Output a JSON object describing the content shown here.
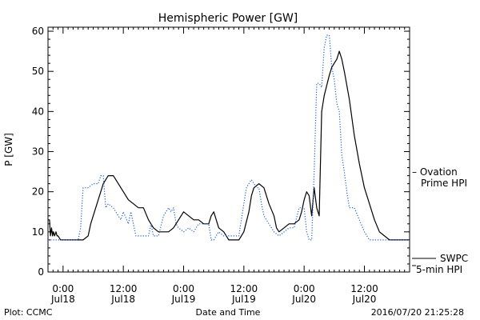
{
  "chart_data": {
    "type": "line",
    "title": "Hemispheric Power [GW]",
    "xlabel": "Date and Time",
    "ylabel": "P [GW]",
    "ylim": [
      0,
      61
    ],
    "yticks": [
      0,
      10,
      20,
      30,
      40,
      50,
      60
    ],
    "xlim_hours": [
      -3,
      69
    ],
    "xticks": [
      {
        "h": 0,
        "time": "0:00",
        "date": "Jul18"
      },
      {
        "h": 12,
        "time": "12:00",
        "date": "Jul18"
      },
      {
        "h": 24,
        "time": "0:00",
        "date": "Jul19"
      },
      {
        "h": 36,
        "time": "12:00",
        "date": "Jul19"
      },
      {
        "h": 48,
        "time": "0:00",
        "date": "Jul20"
      },
      {
        "h": 60,
        "time": "12:00",
        "date": "Jul20"
      }
    ],
    "x_minor_step_hours": 1,
    "grid": false,
    "series": [
      {
        "name": "SWPC 5-min HPI",
        "label_lines": [
          "SWPC",
          "5-min HPI"
        ],
        "color": "#000000",
        "style": "solid",
        "points": [
          [
            -3,
            13
          ],
          [
            -2.7,
            13
          ],
          [
            -2.5,
            9
          ],
          [
            -2.3,
            11
          ],
          [
            -2.1,
            9
          ],
          [
            -1.9,
            10
          ],
          [
            -1.7,
            9
          ],
          [
            -1.4,
            10
          ],
          [
            -1.2,
            9
          ],
          [
            -1,
            9
          ],
          [
            -0.5,
            8
          ],
          [
            0,
            8
          ],
          [
            4,
            8
          ],
          [
            5,
            9
          ],
          [
            5.5,
            12
          ],
          [
            6,
            14
          ],
          [
            7,
            18
          ],
          [
            8,
            22
          ],
          [
            8.5,
            23
          ],
          [
            9,
            24
          ],
          [
            10,
            24
          ],
          [
            11,
            22
          ],
          [
            12,
            20
          ],
          [
            13,
            18
          ],
          [
            14,
            17
          ],
          [
            15,
            16
          ],
          [
            16,
            16
          ],
          [
            17,
            13
          ],
          [
            18,
            11
          ],
          [
            19,
            10
          ],
          [
            20,
            10
          ],
          [
            21,
            10
          ],
          [
            22,
            11
          ],
          [
            23,
            13
          ],
          [
            24,
            15
          ],
          [
            25,
            14
          ],
          [
            26,
            13
          ],
          [
            27,
            13
          ],
          [
            28,
            12
          ],
          [
            29,
            12
          ],
          [
            29.5,
            14
          ],
          [
            30,
            15
          ],
          [
            30.5,
            13
          ],
          [
            31,
            11
          ],
          [
            32,
            10
          ],
          [
            32.5,
            9
          ],
          [
            33,
            8
          ],
          [
            34,
            8
          ],
          [
            35,
            8
          ],
          [
            36,
            10
          ],
          [
            37,
            15
          ],
          [
            37.5,
            19
          ],
          [
            38,
            21
          ],
          [
            39,
            22
          ],
          [
            40,
            21
          ],
          [
            41,
            17
          ],
          [
            42,
            14
          ],
          [
            42.5,
            11
          ],
          [
            43,
            10
          ],
          [
            44,
            11
          ],
          [
            45,
            12
          ],
          [
            46,
            12
          ],
          [
            47,
            13
          ],
          [
            47.5,
            15
          ],
          [
            48,
            18
          ],
          [
            48.5,
            20
          ],
          [
            49,
            19
          ],
          [
            49.5,
            14
          ],
          [
            50,
            21
          ],
          [
            50.5,
            16
          ],
          [
            51,
            14
          ],
          [
            51.5,
            40
          ],
          [
            52,
            44
          ],
          [
            53,
            49
          ],
          [
            53.5,
            51
          ],
          [
            54,
            52
          ],
          [
            54.5,
            53
          ],
          [
            55,
            55
          ],
          [
            55.5,
            53
          ],
          [
            56,
            50
          ],
          [
            57,
            43
          ],
          [
            58,
            34
          ],
          [
            59,
            27
          ],
          [
            60,
            21
          ],
          [
            61,
            17
          ],
          [
            62,
            13
          ],
          [
            63,
            10
          ],
          [
            64,
            9
          ],
          [
            65,
            8
          ],
          [
            66,
            8
          ],
          [
            69,
            8
          ]
        ]
      },
      {
        "name": "Ovation Prime HPI",
        "label_lines": [
          "– Ovation",
          "Prime HPI"
        ],
        "color": "#1c5fd9",
        "style": "dotted",
        "points": [
          [
            -3,
            8
          ],
          [
            3,
            8
          ],
          [
            3.5,
            11
          ],
          [
            4,
            21
          ],
          [
            5,
            21
          ],
          [
            6,
            22
          ],
          [
            7,
            22
          ],
          [
            7.5,
            24
          ],
          [
            8,
            24
          ],
          [
            8.5,
            16
          ],
          [
            9,
            17
          ],
          [
            10,
            16
          ],
          [
            11,
            14
          ],
          [
            11.5,
            13
          ],
          [
            12,
            15
          ],
          [
            13,
            12
          ],
          [
            13.5,
            15
          ],
          [
            14,
            12
          ],
          [
            14.5,
            9
          ],
          [
            15,
            9
          ],
          [
            16,
            9
          ],
          [
            16.5,
            9
          ],
          [
            17,
            9
          ],
          [
            17.5,
            12
          ],
          [
            18,
            9
          ],
          [
            19,
            9
          ],
          [
            20,
            14
          ],
          [
            21,
            16
          ],
          [
            21.5,
            15
          ],
          [
            22,
            16
          ],
          [
            22.5,
            12
          ],
          [
            23,
            11
          ],
          [
            24,
            10
          ],
          [
            25,
            11
          ],
          [
            26,
            10
          ],
          [
            27,
            12
          ],
          [
            28,
            12
          ],
          [
            29,
            12
          ],
          [
            29.5,
            8
          ],
          [
            30,
            8
          ],
          [
            31,
            10
          ],
          [
            32,
            9
          ],
          [
            33,
            9
          ],
          [
            34,
            9
          ],
          [
            35,
            9
          ],
          [
            36,
            17
          ],
          [
            36.5,
            21
          ],
          [
            37,
            22
          ],
          [
            37.5,
            23
          ],
          [
            38,
            22
          ],
          [
            38.5,
            21
          ],
          [
            39,
            21
          ],
          [
            39.5,
            17
          ],
          [
            40,
            14
          ],
          [
            41,
            12
          ],
          [
            42,
            10
          ],
          [
            43,
            9
          ],
          [
            44,
            10
          ],
          [
            45,
            11
          ],
          [
            46,
            11
          ],
          [
            47,
            16
          ],
          [
            48,
            16
          ],
          [
            48.5,
            10
          ],
          [
            49,
            8
          ],
          [
            49.5,
            8
          ],
          [
            50,
            25
          ],
          [
            50.5,
            47
          ],
          [
            51,
            47
          ],
          [
            51.5,
            46
          ],
          [
            52,
            56
          ],
          [
            52.5,
            59
          ],
          [
            53,
            59
          ],
          [
            53.5,
            51
          ],
          [
            54,
            48
          ],
          [
            54.5,
            42
          ],
          [
            55,
            40
          ],
          [
            55.5,
            29
          ],
          [
            56,
            25
          ],
          [
            56.5,
            20
          ],
          [
            57,
            16
          ],
          [
            58,
            16
          ],
          [
            59,
            13
          ],
          [
            60,
            10
          ],
          [
            60.5,
            9
          ],
          [
            61,
            8
          ],
          [
            62,
            8
          ],
          [
            63,
            8
          ],
          [
            69,
            8
          ]
        ]
      }
    ]
  },
  "footer": {
    "left": "Plot: CCMC",
    "right": "2016/07/20 21:25:28"
  }
}
